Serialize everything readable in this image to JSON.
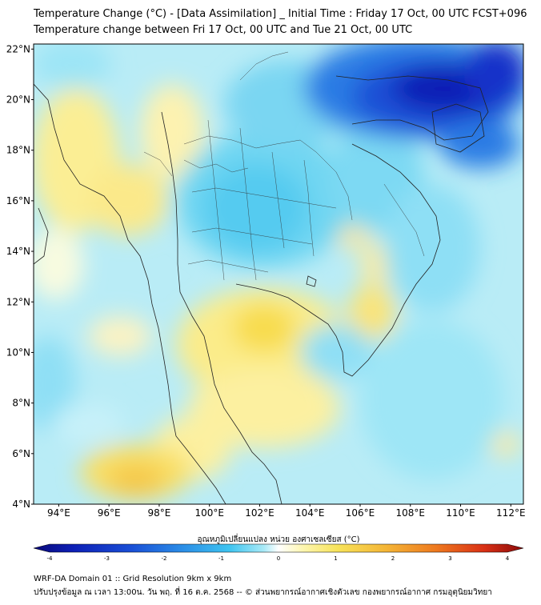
{
  "titles": {
    "line1": "Temperature Change (°C) - [Data Assimilation] _ Initial Time : Friday 17 Oct, 00 UTC FCST+096",
    "line2": "Temperature change between Fri 17 Oct, 00 UTC and Tue 21 Oct, 00 UTC"
  },
  "axes": {
    "lat_labels": [
      "22°N",
      "20°N",
      "18°N",
      "16°N",
      "14°N",
      "12°N",
      "10°N",
      "8°N",
      "6°N",
      "4°N"
    ],
    "lon_labels": [
      "94°E",
      "96°E",
      "98°E",
      "100°E",
      "102°E",
      "104°E",
      "106°E",
      "108°E",
      "110°E",
      "112°E"
    ],
    "lat_range": [
      4,
      22.2
    ],
    "lon_range": [
      93,
      112.5
    ]
  },
  "colorbar": {
    "label": "อุณหภูมิเปลี่ยนแปลง หน่วย องศาเซลเซียส (°C)",
    "ticks": [
      "-4",
      "-3",
      "-2",
      "-1",
      "0",
      "1",
      "2",
      "3",
      "4"
    ],
    "range": [
      -4,
      4
    ],
    "colors": [
      "#0a0a7a",
      "#0d1fb5",
      "#1a4fd6",
      "#2a8be6",
      "#3fc4f0",
      "#a8eaf7",
      "#ffffff",
      "#fdf6b0",
      "#f7e35a",
      "#f4b536",
      "#ee7a1f",
      "#d93015",
      "#8a0a0a"
    ]
  },
  "footer": {
    "line1": "WRF-DA Domain 01 :: Grid Resolution 9km x 9km",
    "line2": "ปรับปรุงข้อมูล ณ เวลา 13:00น. วัน พฤ. ที่ 16 ต.ค. 2568 -- © ส่วนพยากรณ์อากาศเชิงตัวเลข กองพยากรณ์อากาศ กรมอุตุนิยมวิทยา"
  }
}
